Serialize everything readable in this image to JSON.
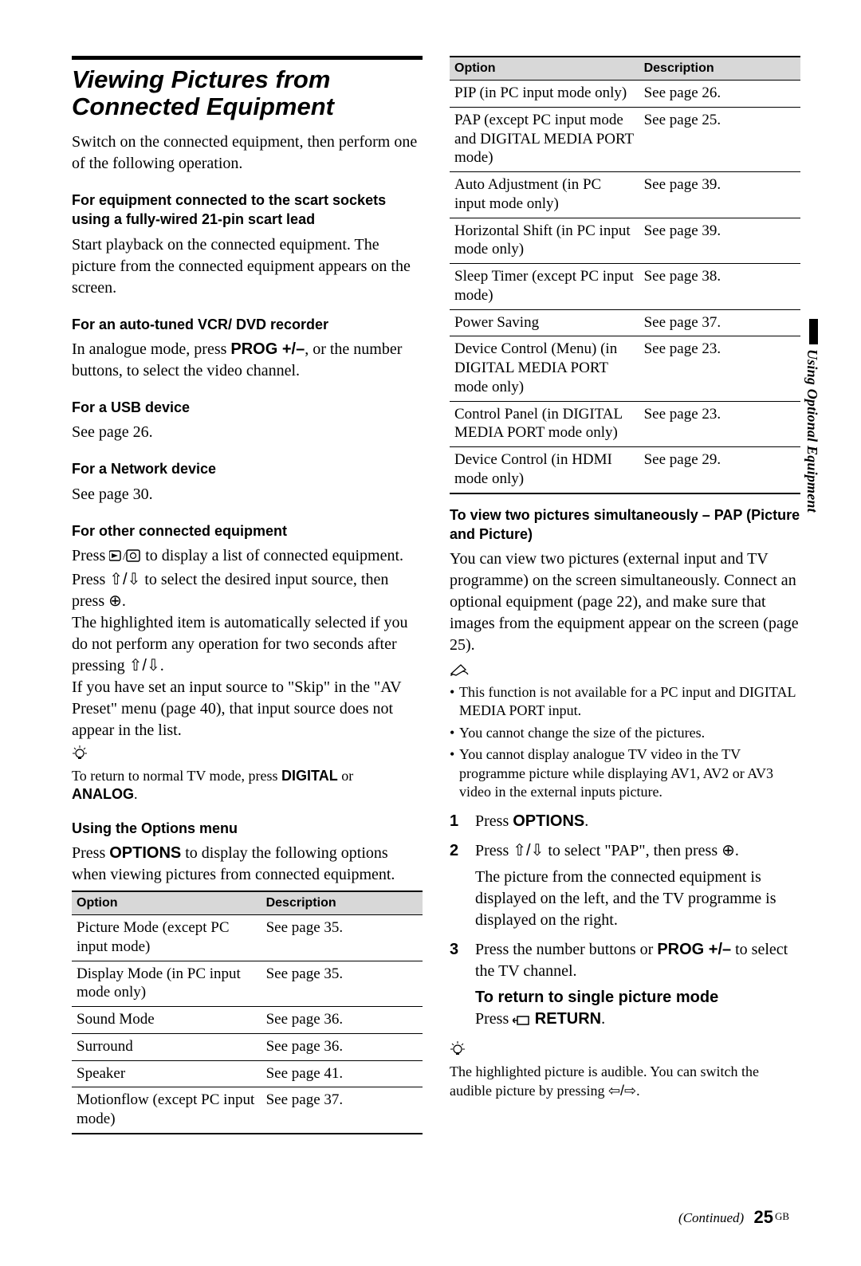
{
  "sideTab": "Using Optional Equipment",
  "mainTitle": "Viewing Pictures from Connected Equipment",
  "intro": "Switch on the connected equipment, then perform one of the following operation.",
  "sectA_hd": "For equipment connected to the scart sockets using a fully-wired 21-pin scart lead",
  "sectA_body": "Start playback on the connected equipment. The picture from the connected equipment appears on the screen.",
  "sectB_hd": "For an auto-tuned VCR/ DVD recorder",
  "sectB_pre": "In analogue mode, press ",
  "sectB_bold": "PROG +/–",
  "sectB_post": ", or the number buttons, to select the video channel.",
  "sectC_hd": "For a USB device",
  "sectC_body": "See page 26.",
  "sectD_hd": "For a Network device",
  "sectD_body": "See page 30.",
  "sectE_hd": "For other connected equipment",
  "sectE_l1a": "Press ",
  "sectE_l1b": " to display a list of connected equipment. Press ",
  "sectE_l1c": " to select the desired input source, then press ",
  "sectE_l1d": ".",
  "sectE_l2": "The highlighted item is automatically selected if you do not perform any operation for two seconds after pressing ",
  "sectE_l2b": ".",
  "sectE_l3": "If you have set an input source to \"Skip\" in the \"AV Preset\" menu (page 40), that input source does not appear in the list.",
  "tip1_pre": "To return to normal TV mode, press ",
  "tip1_b1": "DIGITAL",
  "tip1_mid": " or ",
  "tip1_b2": "ANALOG",
  "tip1_post": ".",
  "optionsHd": "Using the Options menu",
  "optionsIntro_pre": "Press ",
  "optionsIntro_b": "OPTIONS",
  "optionsIntro_post": " to display the following options when viewing pictures from connected equipment.",
  "th_option": "Option",
  "th_desc": "Description",
  "tableA": [
    {
      "o": "Picture Mode (except PC input mode)",
      "d": "See page 35."
    },
    {
      "o": "Display Mode (in PC input mode only)",
      "d": "See page 35."
    },
    {
      "o": "Sound Mode",
      "d": "See page 36."
    },
    {
      "o": "Surround",
      "d": "See page 36."
    },
    {
      "o": "Speaker",
      "d": "See page 41."
    },
    {
      "o": "Motionflow (except PC input mode)",
      "d": "See page 37."
    }
  ],
  "tableB": [
    {
      "o": "PIP (in PC input mode only)",
      "d": "See page 26."
    },
    {
      "o": "PAP (except PC input mode and DIGITAL MEDIA PORT mode)",
      "d": "See page 25."
    },
    {
      "o": "Auto Adjustment (in PC input mode only)",
      "d": "See page 39."
    },
    {
      "o": "Horizontal Shift (in PC input mode only)",
      "d": "See page 39."
    },
    {
      "o": "Sleep Timer (except PC input mode)",
      "d": "See page 38."
    },
    {
      "o": "Power Saving",
      "d": "See page 37."
    },
    {
      "o": "Device Control (Menu) (in DIGITAL MEDIA PORT mode only)",
      "d": "See page 23."
    },
    {
      "o": "Control Panel (in DIGITAL MEDIA PORT mode only)",
      "d": "See page 23."
    },
    {
      "o": "Device Control (in HDMI mode only)",
      "d": "See page 29."
    }
  ],
  "papHd": "To view two pictures simultaneously – PAP (Picture and Picture)",
  "papBody": "You can view two pictures (external input and TV programme) on the screen simultaneously. Connect an optional equipment (page 22), and make sure that images from the equipment appear on the screen (page 25).",
  "notes": [
    "This function is not available for a PC input and DIGITAL MEDIA PORT input.",
    "You cannot change the size of the pictures.",
    "You cannot display analogue TV video in the TV programme picture while displaying AV1, AV2 or AV3 video in the external inputs picture."
  ],
  "step1_pre": "Press ",
  "step1_b": "OPTIONS",
  "step1_post": ".",
  "step2_a": "Press ",
  "step2_b": " to select \"PAP\", then press ",
  "step2_c": ".",
  "step2_body": "The picture from the connected equipment is displayed on the left, and the TV programme is displayed on the right.",
  "step3_pre": "Press the number buttons or ",
  "step3_b": "PROG +/–",
  "step3_post": " to select the TV channel.",
  "returnHd": "To return to single picture mode",
  "return_pre": "Press ",
  "return_b": " RETURN",
  "return_post": ".",
  "tip2_a": "The highlighted picture is audible. You can switch the audible picture by pressing ",
  "tip2_b": ".",
  "footer_cont": "(Continued)",
  "footer_pn": "25",
  "footer_gb": "GB"
}
